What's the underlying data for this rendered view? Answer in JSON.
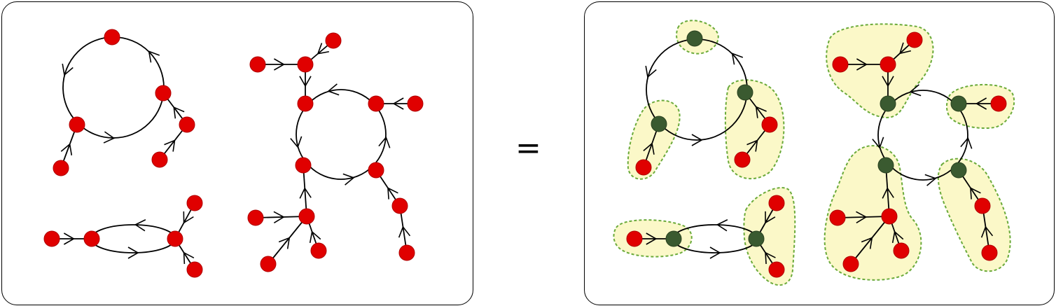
{
  "equals_sign": "=",
  "colors": {
    "node_red": "#e00000",
    "node_dark_green": "#3a5a30",
    "blob_fill": "#fbf8c8",
    "blob_stroke": "#6aaa3a",
    "edge": "#000000"
  },
  "icons": {
    "leaf_node": "red-circle",
    "root_node": "dark-green-circle",
    "edge_arrow": "chevron-arrow"
  }
}
